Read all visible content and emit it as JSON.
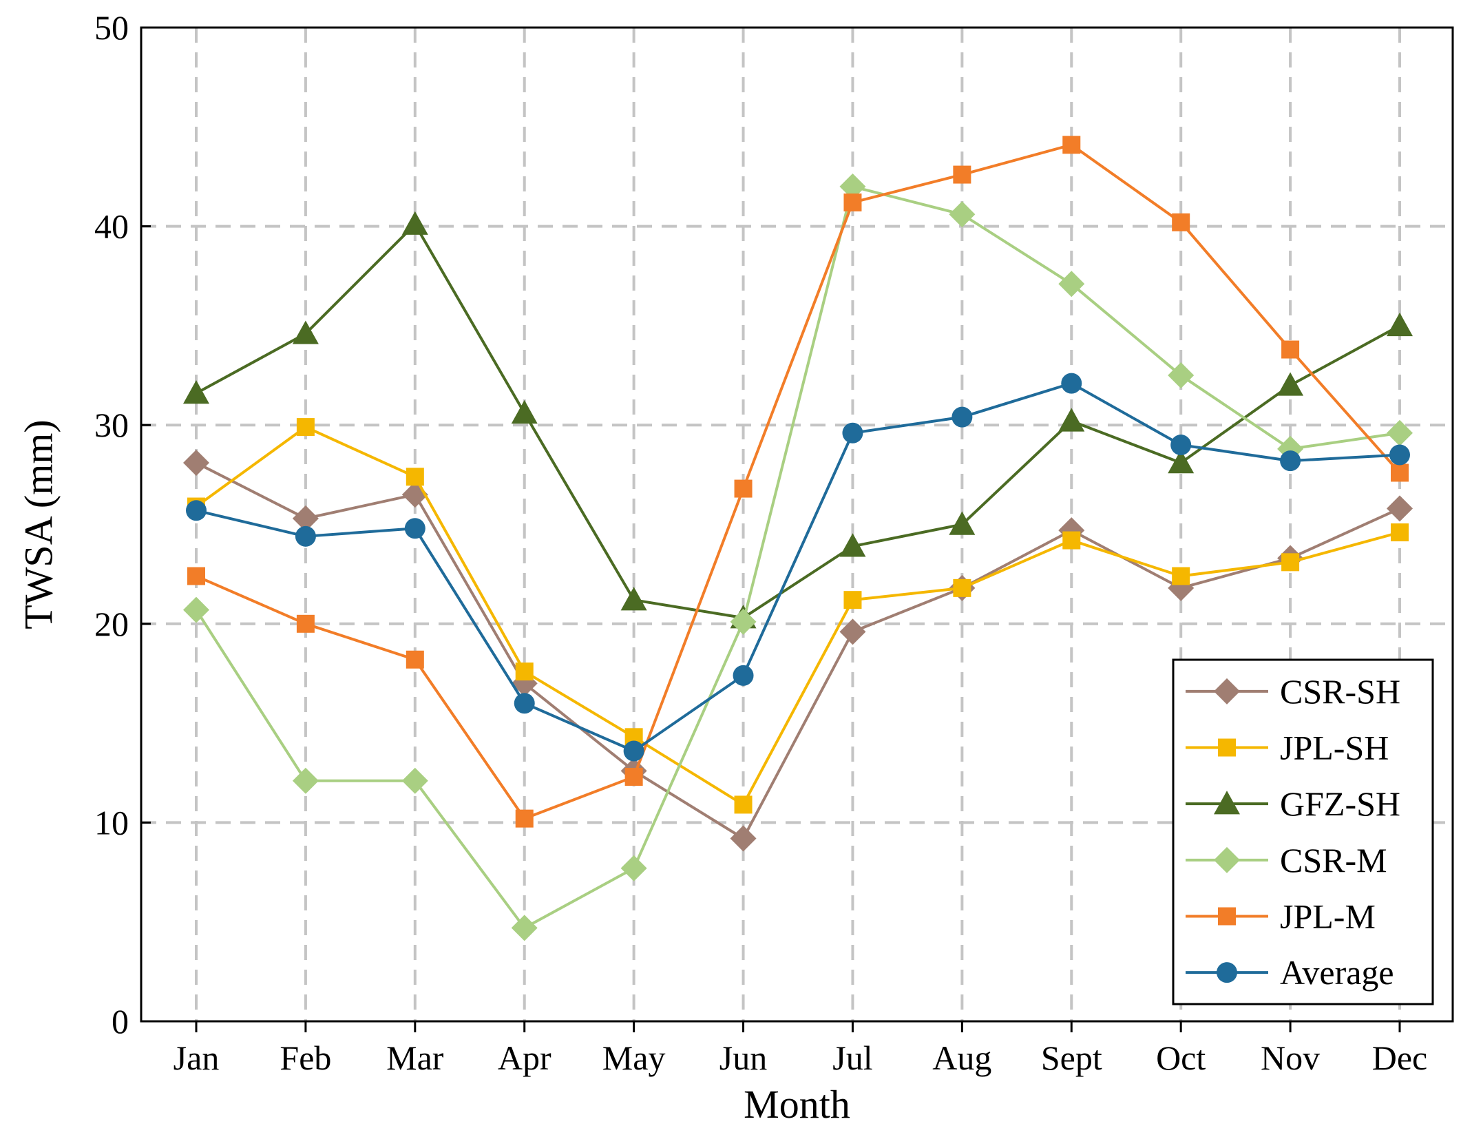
{
  "chart_data": {
    "type": "line",
    "title": "",
    "xlabel": "Month",
    "ylabel": "TWSA (mm)",
    "ylim": [
      0,
      50
    ],
    "yticks": [
      "0",
      "10",
      "20",
      "30",
      "40",
      "50"
    ],
    "grid": true,
    "legend_position": "bottom-right",
    "categories": [
      "Jan",
      "Feb",
      "Mar",
      "Apr",
      "May",
      "Jun",
      "Jul",
      "Aug",
      "Sept",
      "Oct",
      "Nov",
      "Dec"
    ],
    "series": [
      {
        "name": "CSR-SH",
        "color": "#a07e72",
        "marker": "diamond",
        "values": [
          28.1,
          25.3,
          26.5,
          17.0,
          12.6,
          9.2,
          19.6,
          21.8,
          24.7,
          21.8,
          23.3,
          25.8
        ]
      },
      {
        "name": "JPL-SH",
        "color": "#f5b700",
        "marker": "square",
        "values": [
          25.9,
          29.9,
          27.4,
          17.6,
          14.3,
          10.9,
          21.2,
          21.8,
          24.2,
          22.4,
          23.1,
          24.6
        ]
      },
      {
        "name": "GFZ-SH",
        "color": "#4b6b23",
        "marker": "triangle",
        "values": [
          31.6,
          34.6,
          40.1,
          30.6,
          21.2,
          20.3,
          23.9,
          25.0,
          30.2,
          28.1,
          32.0,
          35.0
        ]
      },
      {
        "name": "CSR-M",
        "color": "#a9cf82",
        "marker": "diamond",
        "values": [
          20.7,
          12.1,
          12.1,
          4.7,
          7.7,
          20.1,
          42.0,
          40.6,
          37.1,
          32.5,
          28.8,
          29.6
        ]
      },
      {
        "name": "JPL-M",
        "color": "#f27d28",
        "marker": "square",
        "values": [
          22.4,
          20.0,
          18.2,
          10.2,
          12.3,
          26.8,
          41.2,
          42.6,
          44.1,
          40.2,
          33.8,
          27.6
        ]
      },
      {
        "name": "Average",
        "color": "#1f6b9a",
        "marker": "circle",
        "values": [
          25.7,
          24.4,
          24.8,
          16.0,
          13.6,
          17.4,
          29.6,
          30.4,
          32.1,
          29.0,
          28.2,
          28.5
        ]
      }
    ]
  }
}
